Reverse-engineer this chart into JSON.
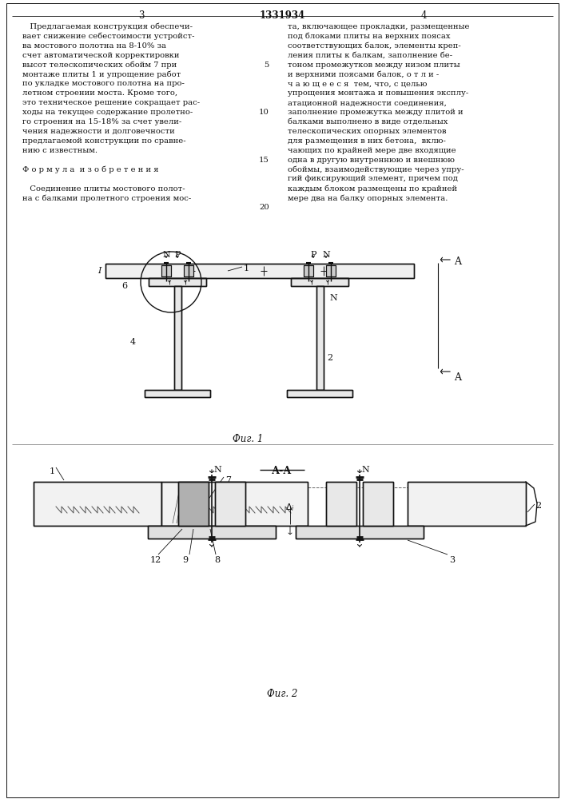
{
  "page_width": 7.07,
  "page_height": 10.0,
  "bg_color": "#ffffff",
  "line_color": "#111111",
  "patent_number": "1331934",
  "page_left": "3",
  "page_right": "4",
  "left_col_lines": [
    "   Предлагаемая конструкция обеспечи-",
    "вает снижение себестоимости устройст-",
    "ва мостового полотна на 8-10% за",
    "счет автоматической корректировки",
    "высот телескопических обойм 7 при",
    "монтаже плиты 1 и упрощение работ",
    "по укладке мостового полотна на про-",
    "летном строении моста. Кроме того,",
    "это техническое решение сокращает рас-",
    "ходы на текущее содержание пролетно-",
    "го строения на 15-18% за счет увели-",
    "чения надежности и долговечности",
    "предлагаемой конструкции по сравне-",
    "нию с известным.",
    "",
    "Ф о р м у л а  и з о б р е т е н и я",
    "",
    "   Соединение плиты мостового полот-",
    "на с балками пролетного строения мос-"
  ],
  "right_col_lines": [
    "та, включающее прокладки, размещенные",
    "под блоками плиты на верхних поясах",
    "соответствующих балок, элементы креп-",
    "ления плиты к балкам, заполнение бе-",
    "тоном промежутков между низом плиты",
    "и верхними поясами балок, о т л и -",
    "ч а ю щ е е с я  тем, что, с целью",
    "упрощения монтажа и повышения эксплу-",
    "атационной надежности соединения,",
    "заполнение промежутка между плитой и",
    "балками выполнено в виде отдельных",
    "телескопических опорных элементов",
    "для размещения в них бетона,  вклю-",
    "чающих по крайней мере две входящие",
    "одна в другую внутреннюю и внешнюю",
    "обоймы, взаимодействующие через упру-",
    "гий фиксирующий элемент, причем под",
    "каждым блоком размещены по крайней",
    "мере два на балку опорных элемента."
  ],
  "line_nums": [
    [
      4,
      "5"
    ],
    [
      9,
      "10"
    ],
    [
      14,
      "15"
    ],
    [
      19,
      "20"
    ]
  ],
  "fig1_caption": "Фиг. 1",
  "fig2_caption": "Фиг. 2",
  "fig2_section_label": "А-А"
}
